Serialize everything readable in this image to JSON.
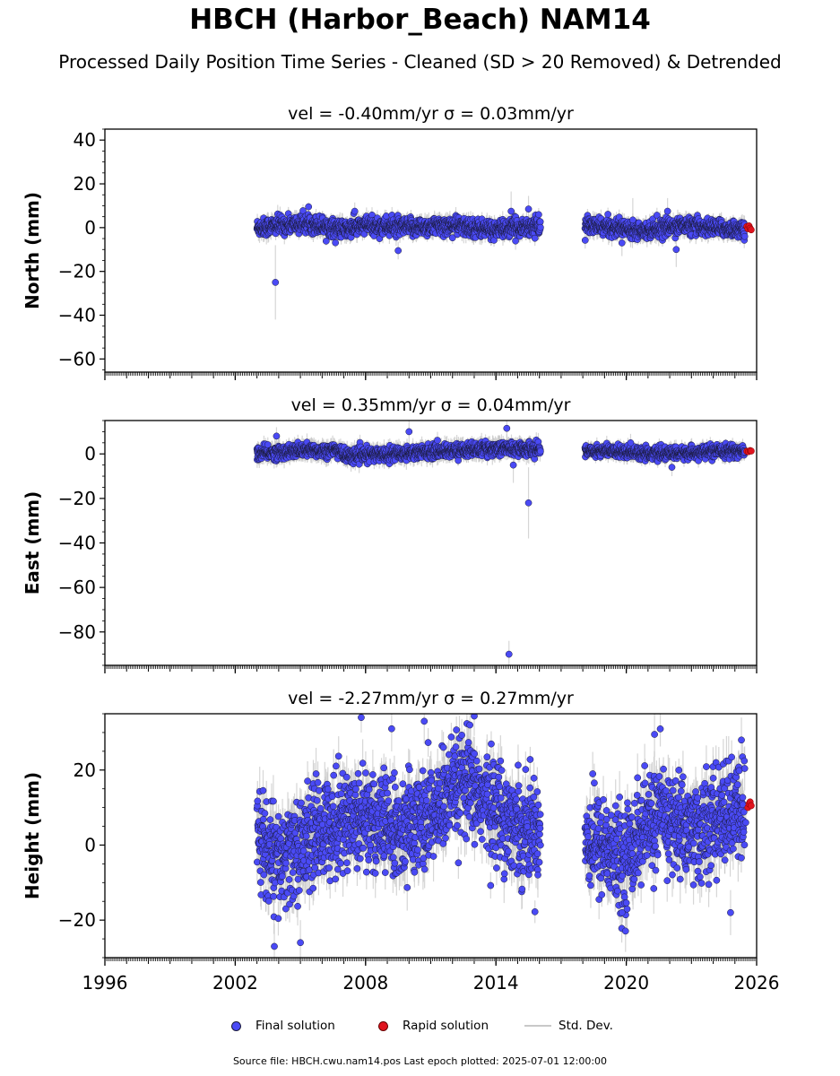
{
  "title": "HBCH (Harbor_Beach) NAM14",
  "subtitle": "Processed Daily Position Time Series - Cleaned (SD > 20 Removed) & Detrended",
  "legend": {
    "final": "Final solution",
    "rapid": "Rapid solution",
    "stddev": "Std. Dev."
  },
  "footer": "Source file: HBCH.cwu.nam14.pos  Last epoch plotted: 2025-07-01 12:00:00",
  "colors": {
    "final": "#4a4af5",
    "final_edge": "#1a1a3a",
    "rapid": "#e0141e",
    "stddev": "#c8c8c8"
  },
  "chart_data": [
    {
      "type": "scatter",
      "title": "vel = -0.40mm/yr   σ = 0.03mm/yr",
      "ylabel": "North (mm)",
      "xlim": [
        1996,
        2026
      ],
      "ylim": [
        -66,
        45
      ],
      "yticks": [
        -60,
        -40,
        -20,
        0,
        20,
        40
      ],
      "xticks": [
        1996,
        2002,
        2008,
        2014,
        2020,
        2026
      ],
      "show_xtick_labels": false,
      "segments": [
        {
          "start": 2003.0,
          "end": 2016.05,
          "baseline": [
            [
              2003.0,
              0
            ],
            [
              2004.0,
              1
            ],
            [
              2005.5,
              2
            ],
            [
              2007.0,
              -1
            ],
            [
              2008.0,
              1
            ],
            [
              2010.0,
              0
            ],
            [
              2012.0,
              1
            ],
            [
              2014.0,
              -1
            ],
            [
              2016.0,
              1
            ]
          ],
          "noise": 2.0,
          "err": 3.0
        },
        {
          "start": 2018.1,
          "end": 2025.45,
          "baseline": [
            [
              2018.1,
              1
            ],
            [
              2019.5,
              0
            ],
            [
              2021.0,
              -1
            ],
            [
              2022.5,
              1
            ],
            [
              2024.0,
              0
            ],
            [
              2025.45,
              -1
            ]
          ],
          "noise": 1.8,
          "err": 3.0
        }
      ],
      "outliers": [
        [
          2003.85,
          -25,
          17
        ],
        [
          2009.5,
          -10.5,
          4
        ],
        [
          2007.5,
          7.5,
          4
        ],
        [
          2014.7,
          7.5,
          9
        ],
        [
          2015.5,
          8.5,
          6
        ],
        [
          2019.8,
          -7,
          6
        ],
        [
          2021.9,
          7.5,
          6
        ],
        [
          2022.3,
          -10,
          8
        ],
        [
          2020.3,
          3.5,
          10
        ]
      ],
      "rapid": [
        [
          2025.55,
          0.5
        ],
        [
          2025.6,
          -0.5
        ],
        [
          2025.65,
          0.8
        ],
        [
          2025.7,
          -0.3
        ],
        [
          2025.75,
          -1.0
        ]
      ]
    },
    {
      "type": "scatter",
      "title": "vel = 0.35mm/yr   σ = 0.04mm/yr",
      "ylabel": "East (mm)",
      "xlim": [
        1996,
        2026
      ],
      "ylim": [
        -95,
        15
      ],
      "yticks": [
        -80,
        -60,
        -40,
        -20,
        0
      ],
      "xticks": [
        1996,
        2002,
        2008,
        2014,
        2020,
        2026
      ],
      "show_xtick_labels": false,
      "segments": [
        {
          "start": 2003.0,
          "end": 2016.05,
          "baseline": [
            [
              2003.0,
              0
            ],
            [
              2005.0,
              1.5
            ],
            [
              2006.9,
              1.5
            ],
            [
              2007.0,
              -1
            ],
            [
              2009.0,
              0
            ],
            [
              2011.0,
              1
            ],
            [
              2013.0,
              2
            ],
            [
              2014.5,
              2.5
            ],
            [
              2016.0,
              2
            ]
          ],
          "noise": 1.5,
          "err": 3.0
        },
        {
          "start": 2018.1,
          "end": 2025.45,
          "baseline": [
            [
              2018.1,
              1.5
            ],
            [
              2020.0,
              1
            ],
            [
              2021.5,
              0
            ],
            [
              2023.0,
              0.5
            ],
            [
              2025.45,
              1.5
            ]
          ],
          "noise": 1.3,
          "err": 2.5
        },
        {
          "start": 2003.0,
          "end": 2016.05,
          "baseline": [
            [
              2003.0,
              0
            ],
            [
              2016.0,
              0
            ]
          ],
          "noise": 0,
          "err": 0
        }
      ],
      "outliers": [
        [
          2003.9,
          8,
          4
        ],
        [
          2010.0,
          10,
          8
        ],
        [
          2014.5,
          11.5,
          6
        ],
        [
          2015.5,
          -22,
          16
        ],
        [
          2014.6,
          -90,
          6
        ],
        [
          2014.8,
          -5,
          8
        ],
        [
          2020.2,
          5,
          4
        ],
        [
          2022.1,
          -6,
          4
        ]
      ],
      "rapid": [
        [
          2025.55,
          1.2
        ],
        [
          2025.62,
          1.0
        ],
        [
          2025.7,
          1.5
        ],
        [
          2025.75,
          1.3
        ]
      ]
    },
    {
      "type": "scatter",
      "title": "vel = -2.27mm/yr   σ = 0.27mm/yr",
      "ylabel": "Height (mm)",
      "xlim": [
        1996,
        2026
      ],
      "ylim": [
        -30,
        35
      ],
      "yticks": [
        -20,
        0,
        20
      ],
      "xticks": [
        1996,
        2002,
        2008,
        2014,
        2020,
        2026
      ],
      "show_xtick_labels": true,
      "segments": [
        {
          "start": 2003.0,
          "end": 2016.05,
          "baseline": [
            [
              2003.0,
              2
            ],
            [
              2004.0,
              -5
            ],
            [
              2005.0,
              0
            ],
            [
              2006.5,
              6
            ],
            [
              2008.0,
              8
            ],
            [
              2009.5,
              3
            ],
            [
              2011.0,
              8
            ],
            [
              2012.5,
              16
            ],
            [
              2013.5,
              12
            ],
            [
              2015.0,
              5
            ],
            [
              2016.0,
              4
            ]
          ],
          "noise": 6.5,
          "err": 5.0
        },
        {
          "start": 2018.1,
          "end": 2025.45,
          "baseline": [
            [
              2018.1,
              2
            ],
            [
              2019.0,
              0
            ],
            [
              2019.8,
              -5
            ],
            [
              2020.5,
              2
            ],
            [
              2021.5,
              8
            ],
            [
              2022.5,
              5
            ],
            [
              2023.5,
              4
            ],
            [
              2024.5,
              8
            ],
            [
              2025.45,
              9
            ]
          ],
          "noise": 6.5,
          "err": 5.0
        }
      ],
      "outliers": [
        [
          2003.8,
          -27,
          6
        ],
        [
          2005.0,
          -26,
          6
        ],
        [
          2007.8,
          34,
          4
        ],
        [
          2009.2,
          31,
          6
        ],
        [
          2010.7,
          33,
          6
        ],
        [
          2012.8,
          32,
          6
        ],
        [
          2021.3,
          29.5,
          6
        ],
        [
          2019.8,
          -18,
          4
        ],
        [
          2024.8,
          -18,
          6
        ],
        [
          2025.3,
          28,
          6
        ],
        [
          2025.5,
          6,
          3
        ]
      ],
      "rapid": [
        [
          2025.6,
          10
        ],
        [
          2025.65,
          11
        ],
        [
          2025.7,
          11.5
        ],
        [
          2025.75,
          10.5
        ]
      ]
    }
  ]
}
